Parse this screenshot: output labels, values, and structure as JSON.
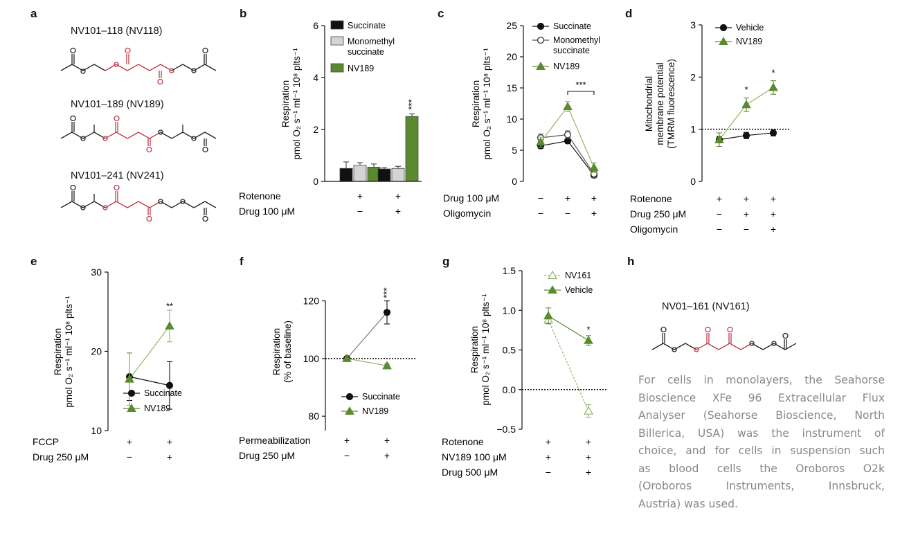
{
  "figure": {
    "panel_labels": [
      "a",
      "b",
      "c",
      "d",
      "e",
      "f",
      "g",
      "h"
    ],
    "compounds": [
      {
        "name": "NV101–118 (NV118)"
      },
      {
        "name": "NV101–189 (NV189)"
      },
      {
        "name": "NV101–241 (NV241)"
      },
      {
        "name": "NV01–161 (NV161)"
      }
    ],
    "colors": {
      "black": "#111111",
      "grey": "#c8c8c8",
      "green": "#5a8a2e",
      "lightgreen": "#8fb56a",
      "red": "#c0394a"
    }
  },
  "caption": {
    "lines": [
      "For cells in monolayers, the Seahorse",
      "Bioscience XFe 96 Extracellular Flux",
      "Analyser (Seahorse Bioscience, North",
      "Billerica, USA) was the instrument of",
      "choice, and for cells in suspension such",
      "as blood cells the Oroboros O2k",
      "(Oroboros Instruments, Innsbruck,",
      "Austria) was used."
    ]
  },
  "chart_data": [
    {
      "panel": "b",
      "type": "bar",
      "ylabel": [
        "Respiration",
        "pmol O₂ s⁻¹ ml⁻¹ 10⁸ plts⁻¹"
      ],
      "ylim": [
        0,
        6
      ],
      "yticks": [
        "0",
        "2",
        "4",
        "6"
      ],
      "groups": [
        {
          "values": [
            0.5,
            0.62,
            0.55
          ],
          "errors": [
            0.25,
            0.1,
            0.12
          ]
        },
        {
          "values": [
            0.48,
            0.5,
            2.5
          ],
          "errors": [
            0.05,
            0.08,
            0.1
          ],
          "annotation": "***"
        }
      ],
      "series": [
        {
          "name": "Succinate"
        },
        {
          "name": "Monomethyl succinate"
        },
        {
          "name": "NV189"
        }
      ],
      "conditions": [
        {
          "label": "Rotenone",
          "values": [
            "+",
            "+"
          ]
        },
        {
          "label": "Drug 100 μM",
          "values": [
            "−",
            "+"
          ]
        }
      ]
    },
    {
      "panel": "c",
      "type": "line",
      "ylabel": [
        "Respiration",
        "pmol O₂ s⁻¹ ml⁻¹ 10⁸ plts⁻¹"
      ],
      "ylim": [
        0,
        25
      ],
      "yticks": [
        "0",
        "5",
        "10",
        "15",
        "20",
        "25"
      ],
      "series": [
        {
          "name": "Succinate",
          "values": [
            5.7,
            6.5,
            1.0
          ]
        },
        {
          "name": "Monomethyl succinate",
          "values": [
            7.0,
            7.5,
            1.2
          ]
        },
        {
          "name": "NV189",
          "values": [
            6.3,
            12.0,
            2.2
          ]
        }
      ],
      "annotation": "***",
      "conditions": [
        {
          "label": "Drug 100 μM",
          "values": [
            "−",
            "+",
            "+"
          ]
        },
        {
          "label": "Oligomycin",
          "values": [
            "−",
            "−",
            "+"
          ]
        }
      ]
    },
    {
      "panel": "d",
      "type": "line",
      "ylabel": [
        "Mitochondrial",
        "membrane potential",
        "(TMRM fluorescence)"
      ],
      "ylim": [
        0,
        3
      ],
      "yticks": [
        "0",
        "1",
        "2",
        "3"
      ],
      "reference_line": 1,
      "series": [
        {
          "name": "Vehicle",
          "values": [
            0.8,
            0.88,
            0.93
          ]
        },
        {
          "name": "NV189",
          "values": [
            0.8,
            1.47,
            1.8
          ]
        }
      ],
      "annotations": [
        "*",
        "*"
      ],
      "conditions": [
        {
          "label": "Rotenone",
          "values": [
            "+",
            "+",
            "+"
          ]
        },
        {
          "label": "Drug 250 μM",
          "values": [
            "−",
            "+",
            "+"
          ]
        },
        {
          "label": "Oligomycin",
          "values": [
            "−",
            "−",
            "+"
          ]
        }
      ]
    },
    {
      "panel": "e",
      "type": "line",
      "ylabel": [
        "Respiration",
        "pmol O₂ s⁻¹ ml⁻¹ 10⁸ plts⁻¹"
      ],
      "ylim": [
        10,
        30
      ],
      "yticks": [
        "10",
        "20",
        "30"
      ],
      "series": [
        {
          "name": "Succinate",
          "values": [
            16.8,
            15.7
          ]
        },
        {
          "name": "NV189",
          "values": [
            16.5,
            23.2
          ]
        }
      ],
      "annotation": "**",
      "conditions": [
        {
          "label": "FCCP",
          "values": [
            "+",
            "+"
          ]
        },
        {
          "label": "Drug 250 μM",
          "values": [
            "−",
            "+"
          ]
        }
      ]
    },
    {
      "panel": "f",
      "type": "line",
      "ylabel": [
        "Respiration",
        "(% of baseline)"
      ],
      "ylim": [
        75,
        130
      ],
      "yticks": [
        "80",
        "100",
        "120"
      ],
      "reference_line": 100,
      "series": [
        {
          "name": "Succinate",
          "values": [
            100,
            116
          ]
        },
        {
          "name": "NV189",
          "values": [
            100,
            97.5
          ]
        }
      ],
      "annotation": "***",
      "conditions": [
        {
          "label": "Permeabilization",
          "values": [
            "+",
            "+"
          ]
        },
        {
          "label": "Drug 250 μM",
          "values": [
            "−",
            "+"
          ]
        }
      ]
    },
    {
      "panel": "g",
      "type": "line",
      "ylabel": [
        "Respiration",
        "pmol O₂ s⁻¹ ml⁻¹ 10⁸ plts⁻¹"
      ],
      "ylim": [
        -0.5,
        1.5
      ],
      "yticks": [
        "−0.5",
        "0.0",
        "0.5",
        "1.0",
        "1.5"
      ],
      "reference_line": 0,
      "series": [
        {
          "name": "NV161",
          "values": [
            0.88,
            -0.27
          ]
        },
        {
          "name": "Vehicle",
          "values": [
            0.93,
            0.62
          ]
        }
      ],
      "annotation": "*",
      "conditions": [
        {
          "label": "Rotenone",
          "values": [
            "+",
            "+"
          ]
        },
        {
          "label": "NV189 100 μM",
          "values": [
            "+",
            "+"
          ]
        },
        {
          "label": "Drug 500 μM",
          "values": [
            "−",
            "+"
          ]
        }
      ]
    }
  ]
}
